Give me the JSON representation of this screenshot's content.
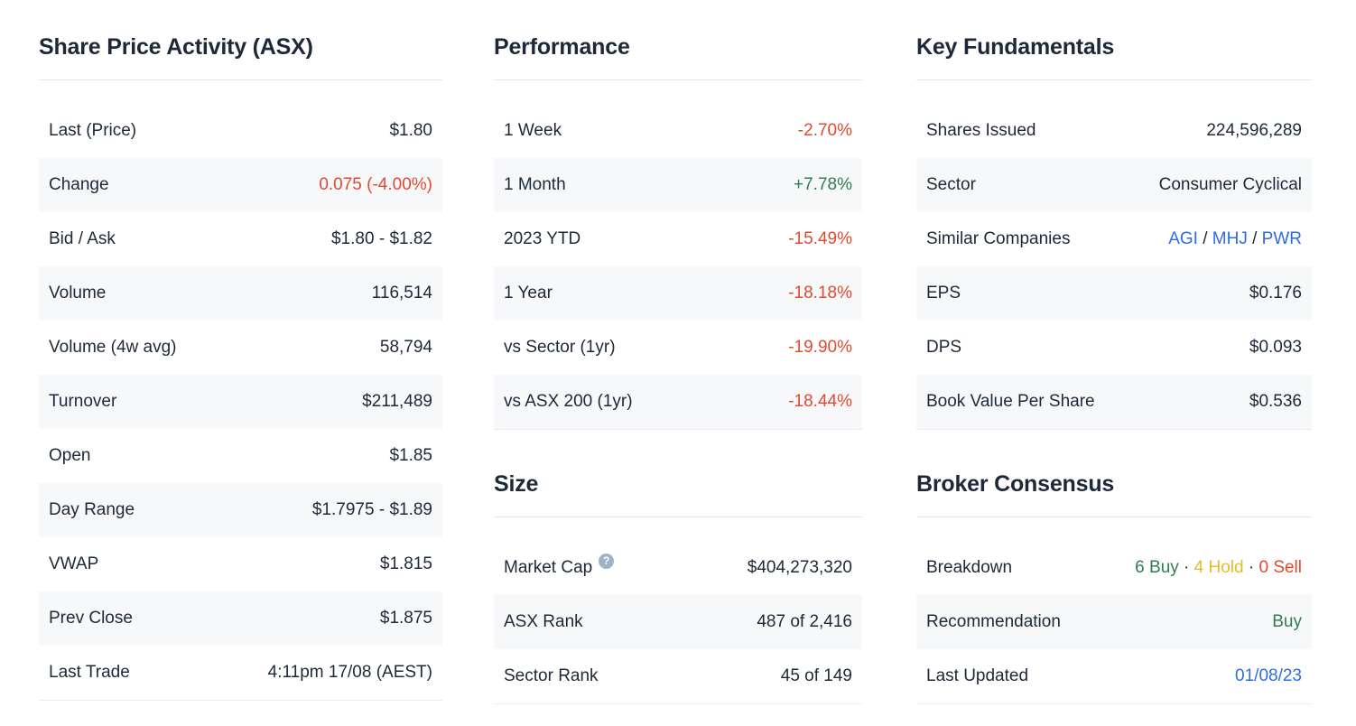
{
  "palette": {
    "text": "#1d2939",
    "negative": "#df4a31",
    "positive": "#2f7d52",
    "neutral_hold": "#e6bb2a",
    "link": "#2f6ce0",
    "stripe_bg": "#f7f8f9",
    "rule": "#e2e8ee",
    "help_icon_bg": "#9fb2c5"
  },
  "help_icon": {
    "glyph": "?"
  },
  "sections": {
    "share_price_activity": {
      "title": "Share Price Activity (ASX)",
      "rows": [
        {
          "label": "Last (Price)",
          "value": "$1.80"
        },
        {
          "label": "Change",
          "value": "0.075 (-4.00%)",
          "color": "negative"
        },
        {
          "label": "Bid / Ask",
          "value": "$1.80 - $1.82"
        },
        {
          "label": "Volume",
          "value": "116,514"
        },
        {
          "label": "Volume (4w avg)",
          "value": "58,794"
        },
        {
          "label": "Turnover",
          "value": "$211,489"
        },
        {
          "label": "Open",
          "value": "$1.85"
        },
        {
          "label": "Day Range",
          "value": "$1.7975 - $1.89"
        },
        {
          "label": "VWAP",
          "value": "$1.815"
        },
        {
          "label": "Prev Close",
          "value": "$1.875"
        },
        {
          "label": "Last Trade",
          "value": "4:11pm 17/08 (AEST)"
        }
      ]
    },
    "performance": {
      "title": "Performance",
      "rows": [
        {
          "label": "1 Week",
          "value": "-2.70%",
          "color": "negative"
        },
        {
          "label": "1 Month",
          "value": "+7.78%",
          "color": "positive"
        },
        {
          "label": "2023 YTD",
          "value": "-15.49%",
          "color": "negative"
        },
        {
          "label": "1 Year",
          "value": "-18.18%",
          "color": "negative"
        },
        {
          "label": "vs Sector (1yr)",
          "value": "-19.90%",
          "color": "negative"
        },
        {
          "label": "vs ASX 200 (1yr)",
          "value": "-18.44%",
          "color": "negative"
        }
      ]
    },
    "size": {
      "title": "Size",
      "rows": [
        {
          "label": "Market Cap",
          "value": "$404,273,320",
          "help_icon": true
        },
        {
          "label": "ASX Rank",
          "value": "487 of 2,416"
        },
        {
          "label": "Sector Rank",
          "value": "45 of 149"
        }
      ]
    },
    "key_fundamentals": {
      "title": "Key Fundamentals",
      "rows": [
        {
          "label": "Shares Issued",
          "value": "224,596,289"
        },
        {
          "label": "Sector",
          "value": "Consumer Cyclical"
        },
        {
          "label": "Similar Companies",
          "parts": [
            {
              "text": "AGI",
              "color": "link",
              "interactable": true,
              "name": "similar-company-link-agi"
            },
            {
              "text": " / ",
              "name": "value-separator"
            },
            {
              "text": "MHJ",
              "color": "link",
              "interactable": true,
              "name": "similar-company-link-mhj"
            },
            {
              "text": " / ",
              "name": "value-separator"
            },
            {
              "text": "PWR",
              "color": "link",
              "interactable": true,
              "name": "similar-company-link-pwr"
            }
          ]
        },
        {
          "label": "EPS",
          "value": "$0.176"
        },
        {
          "label": "DPS",
          "value": "$0.093"
        },
        {
          "label": "Book Value Per Share",
          "value": "$0.536"
        }
      ]
    },
    "broker_consensus": {
      "title": "Broker Consensus",
      "rows": [
        {
          "label": "Breakdown",
          "parts": [
            {
              "text": "6 Buy",
              "color": "positive",
              "name": "breakdown-buy-count"
            },
            {
              "text": " · ",
              "name": "value-separator"
            },
            {
              "text": "4 Hold",
              "color": "neutral_hold",
              "name": "breakdown-hold-count"
            },
            {
              "text": " · ",
              "name": "value-separator"
            },
            {
              "text": "0 Sell",
              "color": "negative",
              "name": "breakdown-sell-count"
            }
          ]
        },
        {
          "label": "Recommendation",
          "value": "Buy",
          "color": "positive"
        },
        {
          "label": "Last Updated",
          "value": "01/08/23",
          "color": "link",
          "interactable": true,
          "name": "last-updated-date-link"
        }
      ]
    }
  }
}
